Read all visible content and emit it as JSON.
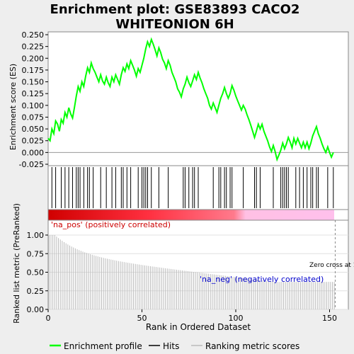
{
  "chart_data": {
    "type": "line",
    "title_lines": [
      "Enrichment plot: GSE83893 CACO2",
      "WHITEONION 6H"
    ],
    "es_panel": {
      "ylabel": "Enrichment score (ES)",
      "ylim": [
        -0.025,
        0.25
      ],
      "yticks": [
        -0.025,
        0.0,
        0.025,
        0.05,
        0.075,
        0.1,
        0.125,
        0.15,
        0.175,
        0.2,
        0.225,
        0.25
      ],
      "ytick_labels": [
        "-0.025",
        "0.000",
        "0.025",
        "0.050",
        "0.075",
        "0.100",
        "0.125",
        "0.150",
        "0.175",
        "0.200",
        "0.225",
        "0.250"
      ],
      "series_name": "Enrichment profile",
      "color": "#00ff00",
      "x": [
        0,
        1,
        2,
        3,
        4,
        5,
        6,
        7,
        8,
        9,
        10,
        11,
        12,
        13,
        14,
        15,
        16,
        17,
        18,
        19,
        20,
        21,
        22,
        23,
        24,
        25,
        26,
        27,
        28,
        29,
        30,
        31,
        32,
        33,
        34,
        35,
        36,
        37,
        38,
        39,
        40,
        41,
        42,
        43,
        44,
        45,
        46,
        47,
        48,
        49,
        50,
        51,
        52,
        53,
        54,
        55,
        56,
        57,
        58,
        59,
        60,
        61,
        62,
        63,
        64,
        65,
        66,
        67,
        68,
        69,
        70,
        71,
        72,
        73,
        74,
        75,
        76,
        77,
        78,
        79,
        80,
        81,
        82,
        83,
        84,
        85,
        86,
        87,
        88,
        89,
        90,
        91,
        92,
        93,
        94,
        95,
        96,
        97,
        98,
        99,
        100,
        101,
        102,
        103,
        104,
        105,
        106,
        107,
        108,
        109,
        110,
        111,
        112,
        113,
        114,
        115,
        116,
        117,
        118,
        119,
        120,
        121,
        122,
        123,
        124,
        125,
        126,
        127,
        128,
        129,
        130,
        131,
        132,
        133,
        134,
        135,
        136,
        137,
        138,
        139,
        140,
        141,
        142,
        143,
        144,
        145,
        146,
        147,
        148,
        149,
        150,
        151,
        152
      ],
      "y": [
        0.03,
        0.025,
        0.05,
        0.04,
        0.067,
        0.06,
        0.045,
        0.07,
        0.062,
        0.085,
        0.075,
        0.095,
        0.082,
        0.073,
        0.095,
        0.12,
        0.14,
        0.13,
        0.15,
        0.14,
        0.162,
        0.18,
        0.17,
        0.19,
        0.178,
        0.17,
        0.16,
        0.15,
        0.165,
        0.152,
        0.145,
        0.16,
        0.148,
        0.14,
        0.16,
        0.15,
        0.165,
        0.155,
        0.145,
        0.165,
        0.18,
        0.172,
        0.188,
        0.178,
        0.195,
        0.185,
        0.175,
        0.162,
        0.178,
        0.17,
        0.185,
        0.2,
        0.22,
        0.235,
        0.225,
        0.24,
        0.23,
        0.218,
        0.205,
        0.222,
        0.212,
        0.198,
        0.19,
        0.178,
        0.195,
        0.185,
        0.17,
        0.16,
        0.15,
        0.135,
        0.128,
        0.118,
        0.135,
        0.145,
        0.16,
        0.148,
        0.14,
        0.152,
        0.165,
        0.155,
        0.17,
        0.158,
        0.148,
        0.135,
        0.125,
        0.115,
        0.1,
        0.092,
        0.105,
        0.095,
        0.085,
        0.1,
        0.115,
        0.125,
        0.138,
        0.125,
        0.115,
        0.125,
        0.142,
        0.132,
        0.12,
        0.11,
        0.1,
        0.09,
        0.1,
        0.092,
        0.08,
        0.07,
        0.058,
        0.045,
        0.032,
        0.045,
        0.06,
        0.05,
        0.06,
        0.045,
        0.035,
        0.025,
        0.012,
        0.002,
        0.015,
        0.002,
        -0.015,
        -0.005,
        0.005,
        0.02,
        0.008,
        0.018,
        0.032,
        0.022,
        0.01,
        0.03,
        0.018,
        0.03,
        0.02,
        0.01,
        0.022,
        0.01,
        0.022,
        0.008,
        0.02,
        0.035,
        0.045,
        0.055,
        0.04,
        0.03,
        0.018,
        0.008,
        0.0,
        0.012,
        0.0,
        -0.01,
        0.0
      ]
    },
    "hits_panel": {
      "series_name": "Hits",
      "positions": [
        2,
        4,
        7,
        9,
        11,
        13,
        15,
        16,
        17,
        19,
        21,
        22,
        24,
        28,
        31,
        34,
        36,
        39,
        40,
        42,
        44,
        48,
        50,
        51,
        52,
        53,
        55,
        59,
        64,
        72,
        73,
        75,
        77,
        78,
        80,
        88,
        91,
        92,
        94,
        95,
        97,
        98,
        104,
        110,
        111,
        113,
        120,
        124,
        125,
        126,
        127,
        128,
        132,
        134,
        136,
        138,
        140,
        141,
        143,
        144,
        149,
        152
      ]
    },
    "ranked_panel": {
      "ylabel": "Ranked list metric (PreRanked)",
      "xlabel": "Rank in Ordered Dataset",
      "series_name": "Ranking metric scores",
      "ylim": [
        0.0,
        1.2
      ],
      "yticks": [
        0.0,
        0.25,
        0.5,
        0.75,
        1.0
      ],
      "ytick_labels": [
        "0.00",
        "0.25",
        "0.50",
        "0.75",
        "1.00"
      ],
      "xlim": [
        0,
        160
      ],
      "xticks": [
        0,
        50,
        100,
        150
      ],
      "xtick_labels": [
        "0",
        "50",
        "100",
        "150"
      ],
      "n": 153,
      "na_pos_label": "'na_pos' (positively correlated)",
      "na_neg_label": "'na_neg' (negatively correlated)",
      "zero_cross_label": "Zero cross at 152",
      "zero_cross_x": 153
    },
    "legend": {
      "placement": "bottom",
      "entries": [
        {
          "label": "Enrichment profile",
          "color": "#00ff00",
          "style": "line"
        },
        {
          "label": "Hits",
          "color": "#000000",
          "style": "line"
        },
        {
          "label": "Ranking metric scores",
          "color": "#bbbbbb",
          "style": "line"
        }
      ]
    },
    "colors": {
      "gradient_red": "#ff0000",
      "gradient_pink": "#ffb0e8",
      "na_pos_text": "#cc0000",
      "na_neg_text": "#0000cc"
    }
  }
}
